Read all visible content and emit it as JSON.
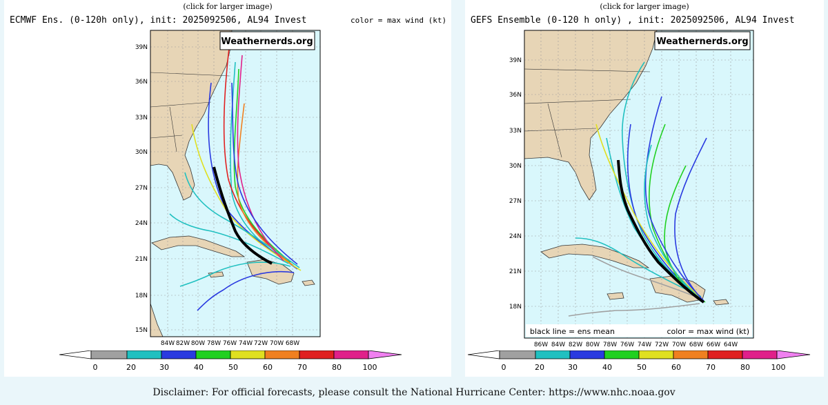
{
  "caption": "(click for larger image)",
  "left_plot": {
    "title": "ECMWF Ens. (0-120h only), init: 2025092506, AL94 Invest",
    "legend": "color = max wind (kt)",
    "watermark": "Weathernerds.org",
    "lat_labels": [
      "39N",
      "36N",
      "33N",
      "30N",
      "27N",
      "24N",
      "21N",
      "18N",
      "15N"
    ],
    "lon_labels": [
      "84W",
      "82W",
      "80W",
      "78W",
      "76W",
      "74W",
      "72W",
      "70W",
      "68W"
    ]
  },
  "right_plot": {
    "title": "GEFS Ensemble (0-120 h only) , init: 2025092506, AL94 Invest",
    "watermark": "Weathernerds.org",
    "bottom_left_note": "black line = ens mean",
    "bottom_right_note": "color = max wind (kt)",
    "lat_labels": [
      "39N",
      "36N",
      "33N",
      "30N",
      "27N",
      "24N",
      "21N",
      "18N"
    ],
    "lon_labels": [
      "86W",
      "84W",
      "82W",
      "80W",
      "78W",
      "76W",
      "74W",
      "72W",
      "70W",
      "68W",
      "66W",
      "64W"
    ]
  },
  "colorbar": {
    "ticks": [
      "0",
      "20",
      "30",
      "40",
      "50",
      "60",
      "70",
      "80",
      "100"
    ],
    "colors": [
      "#a0a0a0",
      "#20c0c0",
      "#2a3ae0",
      "#20d020",
      "#e0e020",
      "#f08020",
      "#e02020",
      "#e0208a"
    ]
  },
  "disclaimer": "Disclaimer: For official forecasts, please consult the National Hurricane Center: https://www.nhc.noaa.gov"
}
